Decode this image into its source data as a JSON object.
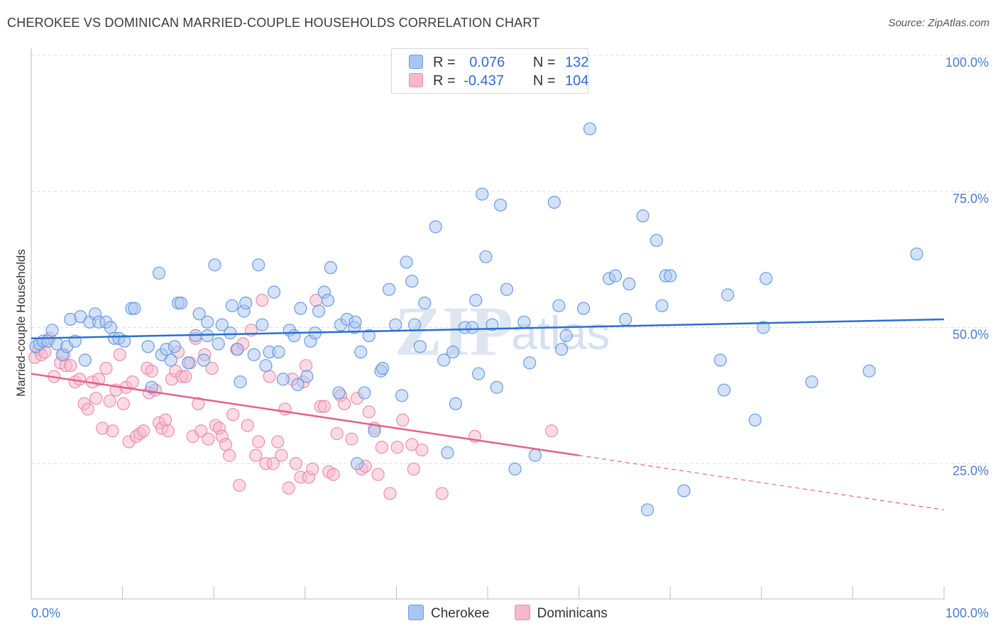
{
  "header": {
    "title": "CHEROKEE VS DOMINICAN MARRIED-COUPLE HOUSEHOLDS CORRELATION CHART",
    "source": "Source: ZipAtlas.com"
  },
  "legend": {
    "rows": [
      {
        "r_label": "R =",
        "r_value": "0.076",
        "n_label": "N =",
        "n_value": "132"
      },
      {
        "r_label": "R =",
        "r_value": "-0.437",
        "n_label": "N =",
        "n_value": "104"
      }
    ]
  },
  "bottom_legend": [
    "Cherokee",
    "Dominicans"
  ],
  "watermark": {
    "zip": "ZIP",
    "atlas": "atlas"
  },
  "colors": {
    "cherokee_fill": "#a9c6f0",
    "cherokee_stroke": "#6a9be0",
    "cherokee_line": "#2a6fd0",
    "dominican_fill": "#f6b8cb",
    "dominican_stroke": "#ec8cab",
    "dominican_line": "#e5608e",
    "tick_text": "#4a7cc9"
  },
  "chart_data": {
    "type": "scatter",
    "title": "CHEROKEE VS DOMINICAN MARRIED-COUPLE HOUSEHOLDS CORRELATION CHART",
    "xlabel": "",
    "ylabel": "Married-couple Households",
    "xlim": [
      0,
      100
    ],
    "ylim": [
      0,
      100
    ],
    "x_tick_labels": [
      "0.0%",
      "100.0%"
    ],
    "y_ticks": [
      25,
      50,
      75,
      100
    ],
    "y_tick_labels": [
      "25.0%",
      "50.0%",
      "75.0%",
      "100.0%"
    ],
    "grid": true,
    "series": [
      {
        "name": "Cherokee",
        "r": 0.076,
        "n": 132,
        "trend": {
          "x": [
            0,
            100
          ],
          "y": [
            48.0,
            51.5
          ]
        },
        "points": [
          [
            0.5,
            46.5
          ],
          [
            0.9,
            47
          ],
          [
            1.3,
            47.5
          ],
          [
            1.8,
            47.5
          ],
          [
            2.3,
            49.5
          ],
          [
            2.8,
            47
          ],
          [
            3.4,
            45
          ],
          [
            3.9,
            46.5
          ],
          [
            4.3,
            51.5
          ],
          [
            4.8,
            47.5
          ],
          [
            5.4,
            52
          ],
          [
            5.9,
            44
          ],
          [
            6.4,
            51
          ],
          [
            7.0,
            52.5
          ],
          [
            7.4,
            51
          ],
          [
            8.2,
            51
          ],
          [
            8.7,
            50
          ],
          [
            9.1,
            48
          ],
          [
            9.6,
            48
          ],
          [
            10.2,
            47.5
          ],
          [
            11.0,
            53.5
          ],
          [
            11.3,
            53.5
          ],
          [
            12.8,
            46.5
          ],
          [
            13.2,
            39
          ],
          [
            14.0,
            60
          ],
          [
            14.3,
            45
          ],
          [
            14.8,
            46
          ],
          [
            15.3,
            44
          ],
          [
            15.7,
            46.5
          ],
          [
            16.1,
            54.5
          ],
          [
            16.4,
            54.5
          ],
          [
            17.2,
            43.5
          ],
          [
            18.0,
            48.5
          ],
          [
            18.4,
            52.5
          ],
          [
            18.9,
            44
          ],
          [
            19.3,
            48.5
          ],
          [
            19.3,
            51
          ],
          [
            20.1,
            61.5
          ],
          [
            20.5,
            47
          ],
          [
            20.9,
            50.5
          ],
          [
            21.8,
            49
          ],
          [
            22.0,
            54
          ],
          [
            22.6,
            46
          ],
          [
            22.9,
            40
          ],
          [
            23.3,
            53
          ],
          [
            23.5,
            54.5
          ],
          [
            24.4,
            45
          ],
          [
            24.9,
            61.5
          ],
          [
            25.3,
            50.5
          ],
          [
            25.7,
            43
          ],
          [
            26.1,
            45.5
          ],
          [
            26.6,
            56.5
          ],
          [
            27.1,
            45.5
          ],
          [
            27.6,
            40.5
          ],
          [
            28.3,
            49.5
          ],
          [
            28.8,
            48.5
          ],
          [
            29.2,
            39.5
          ],
          [
            29.5,
            53.5
          ],
          [
            30.2,
            41
          ],
          [
            30.6,
            47.5
          ],
          [
            31.1,
            49
          ],
          [
            31.5,
            53
          ],
          [
            32.1,
            56.5
          ],
          [
            32.5,
            55
          ],
          [
            32.8,
            61
          ],
          [
            33.7,
            38
          ],
          [
            33.9,
            50.5
          ],
          [
            34.6,
            51.5
          ],
          [
            35.4,
            50
          ],
          [
            35.5,
            51
          ],
          [
            35.7,
            25
          ],
          [
            36.1,
            45.5
          ],
          [
            36.5,
            38
          ],
          [
            37.0,
            48.5
          ],
          [
            37.6,
            31
          ],
          [
            38.3,
            42
          ],
          [
            38.5,
            42.5
          ],
          [
            39.2,
            57
          ],
          [
            39.9,
            50.5
          ],
          [
            40.6,
            37.5
          ],
          [
            41.1,
            62
          ],
          [
            41.7,
            58.5
          ],
          [
            42.0,
            50.5
          ],
          [
            42.6,
            46.5
          ],
          [
            43.1,
            54.5
          ],
          [
            44.3,
            68.5
          ],
          [
            45.2,
            44
          ],
          [
            45.6,
            27
          ],
          [
            46.2,
            45.5
          ],
          [
            46.5,
            36
          ],
          [
            47.5,
            50
          ],
          [
            48.3,
            50
          ],
          [
            48.7,
            55
          ],
          [
            49.0,
            41.5
          ],
          [
            49.4,
            74.5
          ],
          [
            49.8,
            63
          ],
          [
            50.5,
            50.5
          ],
          [
            51.0,
            39
          ],
          [
            51.4,
            72.5
          ],
          [
            52.1,
            57
          ],
          [
            53.0,
            24
          ],
          [
            54.0,
            51
          ],
          [
            54.6,
            43.5
          ],
          [
            55.2,
            26.5
          ],
          [
            57.3,
            73
          ],
          [
            57.8,
            54
          ],
          [
            58.1,
            46
          ],
          [
            58.6,
            48.5
          ],
          [
            60.5,
            53.5
          ],
          [
            61.2,
            86.5
          ],
          [
            63.3,
            59
          ],
          [
            64.0,
            59.5
          ],
          [
            65.1,
            51.5
          ],
          [
            65.5,
            58
          ],
          [
            67.0,
            70.5
          ],
          [
            67.5,
            16.5
          ],
          [
            68.5,
            66
          ],
          [
            69.1,
            54
          ],
          [
            69.5,
            59.5
          ],
          [
            70.0,
            59.5
          ],
          [
            71.5,
            20
          ],
          [
            75.5,
            44
          ],
          [
            75.9,
            38.5
          ],
          [
            76.3,
            56
          ],
          [
            79.3,
            33
          ],
          [
            80.2,
            50
          ],
          [
            80.5,
            59
          ],
          [
            85.5,
            40
          ],
          [
            91.8,
            42
          ],
          [
            97.0,
            63.5
          ]
        ]
      },
      {
        "name": "Dominicans",
        "r": -0.437,
        "n": 104,
        "trend": {
          "x": [
            0,
            60
          ],
          "y": [
            41.5,
            26.5
          ]
        },
        "trend_extension": {
          "x": [
            60,
            100
          ],
          "y": [
            26.5,
            16.5
          ]
        },
        "points": [
          [
            0.4,
            44.5
          ],
          [
            0.8,
            46
          ],
          [
            1.1,
            45
          ],
          [
            1.5,
            45.5
          ],
          [
            2.0,
            48
          ],
          [
            2.5,
            41
          ],
          [
            3.2,
            43.5
          ],
          [
            3.6,
            45
          ],
          [
            3.8,
            43
          ],
          [
            4.3,
            43
          ],
          [
            4.8,
            40
          ],
          [
            5.3,
            40.5
          ],
          [
            5.8,
            36
          ],
          [
            6.2,
            35
          ],
          [
            6.7,
            40
          ],
          [
            7.1,
            37
          ],
          [
            7.4,
            40.5
          ],
          [
            7.8,
            31.5
          ],
          [
            8.2,
            42.5
          ],
          [
            8.6,
            36.5
          ],
          [
            8.9,
            31
          ],
          [
            9.3,
            38.5
          ],
          [
            9.7,
            45
          ],
          [
            10.1,
            36
          ],
          [
            10.4,
            39
          ],
          [
            10.7,
            29
          ],
          [
            11.1,
            40
          ],
          [
            11.5,
            30
          ],
          [
            11.9,
            30.5
          ],
          [
            12.3,
            31
          ],
          [
            12.7,
            42.5
          ],
          [
            12.9,
            38
          ],
          [
            13.2,
            42
          ],
          [
            13.6,
            38.5
          ],
          [
            14.0,
            32.5
          ],
          [
            14.3,
            31.5
          ],
          [
            14.7,
            33
          ],
          [
            15.0,
            31
          ],
          [
            15.4,
            40.5
          ],
          [
            15.8,
            42
          ],
          [
            16.1,
            45.5
          ],
          [
            16.5,
            41
          ],
          [
            16.9,
            41
          ],
          [
            17.4,
            43.5
          ],
          [
            17.7,
            30
          ],
          [
            18.0,
            48
          ],
          [
            18.3,
            36
          ],
          [
            18.6,
            31
          ],
          [
            19.0,
            45
          ],
          [
            19.4,
            29.5
          ],
          [
            19.8,
            42.5
          ],
          [
            20.2,
            32
          ],
          [
            20.6,
            31.5
          ],
          [
            20.9,
            30
          ],
          [
            21.3,
            28.5
          ],
          [
            21.7,
            26.5
          ],
          [
            22.1,
            34
          ],
          [
            22.5,
            46
          ],
          [
            22.8,
            21
          ],
          [
            23.2,
            47
          ],
          [
            23.7,
            32
          ],
          [
            24.1,
            49.5
          ],
          [
            24.6,
            26.5
          ],
          [
            24.9,
            29
          ],
          [
            25.3,
            55
          ],
          [
            25.7,
            25
          ],
          [
            26.1,
            41
          ],
          [
            26.5,
            25
          ],
          [
            27.0,
            29
          ],
          [
            27.4,
            26.5
          ],
          [
            27.8,
            35
          ],
          [
            28.2,
            20.5
          ],
          [
            28.6,
            40.5
          ],
          [
            29.0,
            25
          ],
          [
            29.5,
            22.5
          ],
          [
            29.8,
            40
          ],
          [
            30.1,
            43
          ],
          [
            30.4,
            22.5
          ],
          [
            30.8,
            24
          ],
          [
            31.2,
            55
          ],
          [
            31.7,
            35.5
          ],
          [
            32.1,
            35.5
          ],
          [
            32.6,
            23.5
          ],
          [
            33.1,
            23
          ],
          [
            33.5,
            30.5
          ],
          [
            33.9,
            37.5
          ],
          [
            34.3,
            36
          ],
          [
            35.1,
            29.5
          ],
          [
            35.7,
            37
          ],
          [
            36.2,
            24
          ],
          [
            36.6,
            24.5
          ],
          [
            37.0,
            34.5
          ],
          [
            37.6,
            31.5
          ],
          [
            38.0,
            23
          ],
          [
            38.4,
            28
          ],
          [
            39.3,
            19.5
          ],
          [
            40.1,
            28
          ],
          [
            40.7,
            33
          ],
          [
            41.7,
            28.5
          ],
          [
            41.9,
            24
          ],
          [
            42.8,
            27.5
          ],
          [
            45.0,
            19.5
          ],
          [
            48.6,
            30
          ],
          [
            57.0,
            31
          ]
        ]
      }
    ]
  }
}
